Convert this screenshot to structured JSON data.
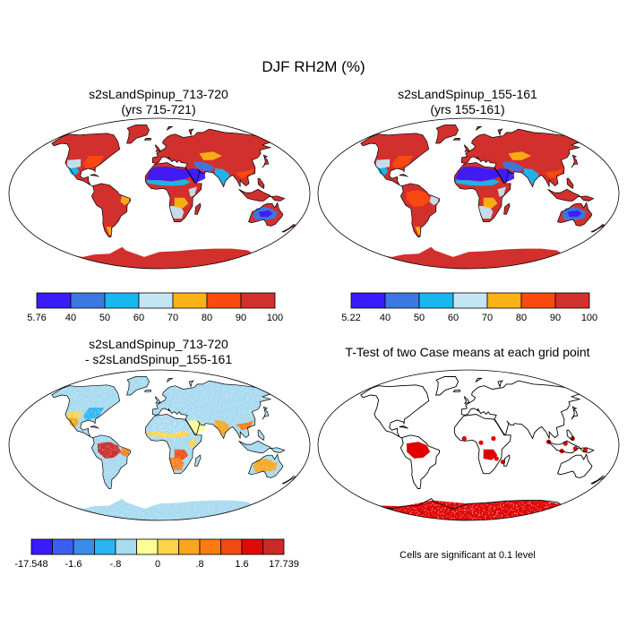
{
  "title": "DJF RH2M (%)",
  "colors": {
    "levels": [
      "#3a1aff",
      "#3c78e0",
      "#18b8ee",
      "#c4e6f4",
      "#fab214",
      "#fb4a10",
      "#d2302c"
    ],
    "diff": [
      "#3a1aff",
      "#3c5ef0",
      "#3a8ce8",
      "#2ab4f0",
      "#a8daf0",
      "#fdfd96",
      "#fbd44a",
      "#f8a61e",
      "#fa7c10",
      "#f04a10",
      "#e00a0a",
      "#cc2828"
    ],
    "land_outline": "#000000",
    "significant": "#e00000"
  },
  "chart_data": [
    {
      "type": "heatmap",
      "name": "case",
      "title": "s2sLandSpinup_713-720",
      "subtitle": "(yrs 715-721)",
      "colorbar": {
        "labels": [
          "5.76",
          "40",
          "50",
          "60",
          "70",
          "80",
          "90",
          "100"
        ],
        "boundaries": [
          5.76,
          40,
          50,
          60,
          70,
          80,
          90,
          100
        ]
      }
    },
    {
      "type": "heatmap",
      "name": "control",
      "title": "s2sLandSpinup_155-161",
      "subtitle": "(yrs 155-161)",
      "colorbar": {
        "labels": [
          "5.22",
          "40",
          "50",
          "60",
          "70",
          "80",
          "90",
          "100"
        ],
        "boundaries": [
          5.22,
          40,
          50,
          60,
          70,
          80,
          90,
          100
        ]
      }
    },
    {
      "type": "heatmap",
      "name": "difference",
      "title": "s2sLandSpinup_713-720",
      "subtitle": "- s2sLandSpinup_155-161",
      "colorbar": {
        "labels": [
          "-17.548",
          "-1.6",
          "-.8",
          "0",
          ".8",
          "1.6",
          "17.739"
        ],
        "boundaries": [
          -17.548,
          -2.0,
          -1.6,
          -1.2,
          -0.8,
          -0.4,
          0,
          0.4,
          0.8,
          1.2,
          1.6,
          2.0,
          17.739
        ]
      }
    },
    {
      "type": "heatmap",
      "name": "ttest",
      "title": "T-Test of two Case means at each grid point",
      "note": "Cells are significant at 0.1 level"
    }
  ]
}
